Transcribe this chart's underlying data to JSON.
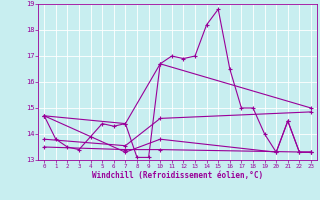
{
  "xlabel": "Windchill (Refroidissement éolien,°C)",
  "bg_color": "#c8eef0",
  "line_color": "#990099",
  "grid_color": "#ffffff",
  "xlim": [
    -0.5,
    23.5
  ],
  "ylim": [
    13,
    19
  ],
  "yticks": [
    13,
    14,
    15,
    16,
    17,
    18,
    19
  ],
  "xticks": [
    0,
    1,
    2,
    3,
    4,
    5,
    6,
    7,
    8,
    9,
    10,
    11,
    12,
    13,
    14,
    15,
    16,
    17,
    18,
    19,
    20,
    21,
    22,
    23
  ],
  "series": [
    [
      [
        0,
        14.7
      ],
      [
        1,
        13.8
      ],
      [
        2,
        13.5
      ],
      [
        3,
        13.4
      ],
      [
        4,
        13.9
      ],
      [
        5,
        14.4
      ],
      [
        6,
        14.3
      ],
      [
        7,
        14.4
      ],
      [
        8,
        13.1
      ],
      [
        9,
        13.1
      ],
      [
        10,
        16.7
      ],
      [
        11,
        17.0
      ],
      [
        12,
        16.9
      ],
      [
        13,
        17.0
      ],
      [
        14,
        18.2
      ],
      [
        15,
        18.8
      ],
      [
        16,
        16.5
      ],
      [
        17,
        15.0
      ],
      [
        18,
        15.0
      ],
      [
        19,
        14.0
      ],
      [
        20,
        13.3
      ],
      [
        21,
        14.5
      ],
      [
        22,
        13.3
      ],
      [
        23,
        13.3
      ]
    ],
    [
      [
        0,
        14.7
      ],
      [
        7,
        14.4
      ],
      [
        10,
        16.7
      ],
      [
        23,
        15.0
      ]
    ],
    [
      [
        0,
        13.8
      ],
      [
        7,
        13.55
      ],
      [
        10,
        14.6
      ],
      [
        23,
        14.85
      ]
    ],
    [
      [
        0,
        13.5
      ],
      [
        7,
        13.4
      ],
      [
        10,
        13.4
      ],
      [
        23,
        13.3
      ]
    ],
    [
      [
        0,
        14.7
      ],
      [
        7,
        13.3
      ],
      [
        10,
        13.8
      ],
      [
        20,
        13.3
      ],
      [
        21,
        14.5
      ],
      [
        22,
        13.3
      ],
      [
        23,
        13.3
      ]
    ]
  ],
  "marker": "+",
  "marker_size": 3,
  "linewidth": 0.8
}
